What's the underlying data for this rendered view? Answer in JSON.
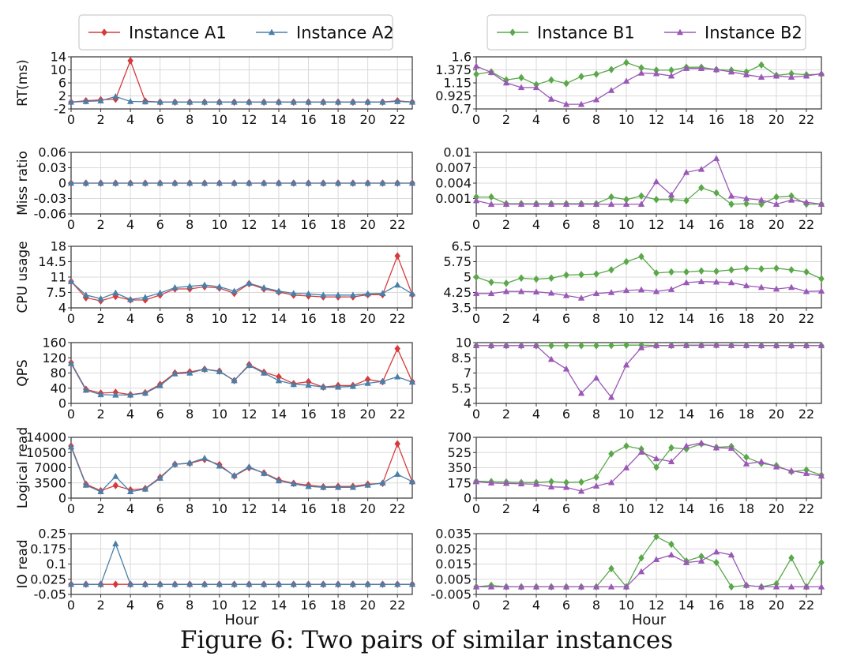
{
  "caption": "Figure 6: Two pairs of similar instances",
  "colors": {
    "A1": "#d63b3b",
    "A2": "#4a7fa8",
    "B1": "#5aa84a",
    "B2": "#9b59b6"
  },
  "legends": [
    {
      "entries": [
        {
          "name": "Instance A1",
          "color": "#d63b3b",
          "marker": "diamond"
        },
        {
          "name": "Instance A2",
          "color": "#4a7fa8",
          "marker": "triangle"
        }
      ]
    },
    {
      "entries": [
        {
          "name": "Instance B1",
          "color": "#5aa84a",
          "marker": "diamond"
        },
        {
          "name": "Instance B2",
          "color": "#9b59b6",
          "marker": "triangle"
        }
      ]
    }
  ],
  "chart_data": [
    {
      "type": "line",
      "ylabel": "RT(ms)",
      "ylim": [
        -2,
        14
      ],
      "yticks": [
        "-2",
        "2",
        "6",
        "10",
        "14"
      ],
      "xlim": [
        0,
        23
      ],
      "xticks": [
        0,
        2,
        4,
        6,
        8,
        10,
        12,
        14,
        16,
        18,
        20,
        22
      ],
      "grid": true,
      "series": [
        {
          "name": "Instance A1",
          "color": "#d63b3b",
          "marker": "diamond",
          "values": [
            0.1,
            0.5,
            0.8,
            1.0,
            12.8,
            0.4,
            0.1,
            0.1,
            0.1,
            0.1,
            0.1,
            0.1,
            0.1,
            0.1,
            0.1,
            0.1,
            0.1,
            0.1,
            0.1,
            0.1,
            0.1,
            0.1,
            0.5,
            0.1
          ]
        },
        {
          "name": "Instance A2",
          "color": "#4a7fa8",
          "marker": "triangle",
          "values": [
            0.1,
            0.3,
            0.5,
            1.8,
            0.3,
            0.2,
            0.1,
            0.1,
            0.1,
            0.1,
            0.1,
            0.1,
            0.1,
            0.1,
            0.1,
            0.1,
            0.1,
            0.1,
            0.1,
            0.1,
            0.1,
            0.1,
            0.3,
            0.1
          ]
        }
      ]
    },
    {
      "type": "line",
      "ylabel": "RT(ms)",
      "ylim": [
        0.7,
        1.6
      ],
      "yticks": [
        "0.7",
        "0.925",
        "1.15",
        "1.375",
        "1.6"
      ],
      "xlim": [
        0,
        23
      ],
      "xticks": [
        0,
        2,
        4,
        6,
        8,
        10,
        12,
        14,
        16,
        18,
        20,
        22
      ],
      "grid": true,
      "series": [
        {
          "name": "Instance B1",
          "color": "#5aa84a",
          "marker": "diamond",
          "values": [
            1.3,
            1.34,
            1.2,
            1.24,
            1.12,
            1.2,
            1.14,
            1.26,
            1.3,
            1.38,
            1.5,
            1.41,
            1.37,
            1.37,
            1.42,
            1.42,
            1.38,
            1.37,
            1.34,
            1.46,
            1.28,
            1.31,
            1.29,
            1.3
          ]
        },
        {
          "name": "Instance B2",
          "color": "#9b59b6",
          "marker": "triangle",
          "values": [
            1.44,
            1.33,
            1.15,
            1.07,
            1.07,
            0.87,
            0.78,
            0.78,
            0.86,
            1.02,
            1.18,
            1.32,
            1.31,
            1.27,
            1.4,
            1.4,
            1.38,
            1.34,
            1.29,
            1.25,
            1.27,
            1.25,
            1.27,
            1.31
          ]
        }
      ]
    },
    {
      "type": "line",
      "ylabel": "Miss ratio",
      "ylim": [
        -0.06,
        0.06
      ],
      "yticks": [
        "-0.06",
        "-0.03",
        "0",
        "0.03",
        "0.06"
      ],
      "xlim": [
        0,
        23
      ],
      "xticks": [
        0,
        2,
        4,
        6,
        8,
        10,
        12,
        14,
        16,
        18,
        20,
        22
      ],
      "grid": true,
      "series": [
        {
          "name": "Instance A1",
          "color": "#d63b3b",
          "marker": "diamond",
          "values": [
            0,
            0,
            0,
            0,
            0,
            0,
            0,
            0,
            0,
            0,
            0,
            0,
            0,
            0,
            0,
            0,
            0,
            0,
            0,
            0,
            0,
            0,
            0,
            0
          ]
        },
        {
          "name": "Instance A2",
          "color": "#4a7fa8",
          "marker": "triangle",
          "values": [
            0,
            0,
            0,
            0,
            0,
            0,
            0,
            0,
            0,
            0,
            0,
            0,
            0,
            0,
            0,
            0,
            0,
            0,
            0,
            0,
            0,
            0,
            0,
            0
          ]
        }
      ]
    },
    {
      "type": "line",
      "ylabel": "Miss ratio",
      "ylim": [
        -0.002,
        0.01
      ],
      "yticks": [
        "0.001",
        "0.004",
        "0.007",
        "0.01"
      ],
      "xlim": [
        0,
        23
      ],
      "xticks": [
        0,
        2,
        4,
        6,
        8,
        10,
        12,
        14,
        16,
        18,
        20,
        22
      ],
      "grid": true,
      "series": [
        {
          "name": "Instance B1",
          "color": "#5aa84a",
          "marker": "diamond",
          "values": [
            0.0013,
            0.0013,
            0.0,
            0.0,
            0.0,
            0.0,
            0.0,
            0.0,
            0.0,
            0.0013,
            0.0008,
            0.0015,
            0.0008,
            0.0008,
            0.0006,
            0.0031,
            0.0021,
            -0.0001,
            0.0,
            -0.0001,
            0.0013,
            0.0015,
            -0.0001,
            -0.0001
          ]
        },
        {
          "name": "Instance B2",
          "color": "#9b59b6",
          "marker": "triangle",
          "values": [
            0.0006,
            -0.0001,
            -0.0001,
            -0.0001,
            -0.0001,
            -0.0001,
            -0.0001,
            -0.0001,
            -0.0001,
            -0.0001,
            -0.0001,
            -0.0001,
            0.0043,
            0.0017,
            0.0061,
            0.0067,
            0.0088,
            0.0015,
            0.001,
            0.0007,
            -0.0001,
            0.0007,
            0.0003,
            -0.0001
          ]
        }
      ]
    },
    {
      "type": "line",
      "ylabel": "CPU usage",
      "ylim": [
        4,
        18
      ],
      "yticks": [
        "4",
        "7.5",
        "11",
        "14.5",
        "18"
      ],
      "xlim": [
        0,
        23
      ],
      "xticks": [
        0,
        2,
        4,
        6,
        8,
        10,
        12,
        14,
        16,
        18,
        20,
        22
      ],
      "grid": true,
      "series": [
        {
          "name": "Instance A1",
          "color": "#d63b3b",
          "marker": "diamond",
          "values": [
            10.0,
            6.3,
            5.6,
            6.6,
            5.8,
            5.8,
            6.9,
            8.3,
            8.3,
            8.8,
            8.5,
            7.3,
            9.5,
            8.3,
            7.6,
            6.9,
            6.7,
            6.5,
            6.5,
            6.5,
            7.0,
            7.0,
            15.8,
            7.0
          ]
        },
        {
          "name": "Instance A2",
          "color": "#4a7fa8",
          "marker": "triangle",
          "values": [
            10.0,
            6.9,
            6.1,
            7.4,
            5.9,
            6.4,
            7.4,
            8.6,
            8.9,
            9.2,
            8.8,
            7.8,
            9.6,
            8.6,
            7.8,
            7.3,
            7.2,
            6.9,
            6.9,
            6.9,
            7.2,
            7.3,
            9.2,
            7.2
          ]
        }
      ]
    },
    {
      "type": "line",
      "ylabel": "CPU usage",
      "ylim": [
        3.5,
        6.5
      ],
      "yticks": [
        "3.5",
        "4.25",
        "5",
        "5.75",
        "6.5"
      ],
      "xlim": [
        0,
        23
      ],
      "xticks": [
        0,
        2,
        4,
        6,
        8,
        10,
        12,
        14,
        16,
        18,
        20,
        22
      ],
      "grid": true,
      "series": [
        {
          "name": "Instance B1",
          "color": "#5aa84a",
          "marker": "diamond",
          "values": [
            5.0,
            4.75,
            4.7,
            4.95,
            4.9,
            4.95,
            5.1,
            5.12,
            5.15,
            5.35,
            5.75,
            6.0,
            5.2,
            5.25,
            5.25,
            5.3,
            5.28,
            5.35,
            5.42,
            5.4,
            5.43,
            5.35,
            5.25,
            4.92
          ]
        },
        {
          "name": "Instance B2",
          "color": "#9b59b6",
          "marker": "triangle",
          "values": [
            4.2,
            4.2,
            4.3,
            4.3,
            4.28,
            4.22,
            4.1,
            3.98,
            4.2,
            4.25,
            4.35,
            4.38,
            4.3,
            4.4,
            4.73,
            4.78,
            4.76,
            4.73,
            4.58,
            4.5,
            4.42,
            4.5,
            4.3,
            4.32
          ]
        }
      ]
    },
    {
      "type": "line",
      "ylabel": "QPS",
      "ylim": [
        0,
        160
      ],
      "yticks": [
        "0",
        "40",
        "80",
        "120",
        "160"
      ],
      "xlim": [
        0,
        23
      ],
      "xticks": [
        0,
        2,
        4,
        6,
        8,
        10,
        12,
        14,
        16,
        18,
        20,
        22
      ],
      "grid": true,
      "series": [
        {
          "name": "Instance A1",
          "color": "#d63b3b",
          "marker": "diamond",
          "values": [
            107,
            37,
            27,
            29,
            23,
            28,
            50,
            80,
            83,
            90,
            85,
            60,
            102,
            82,
            70,
            52,
            57,
            43,
            47,
            47,
            63,
            57,
            144,
            57
          ]
        },
        {
          "name": "Instance A2",
          "color": "#4a7fa8",
          "marker": "triangle",
          "values": [
            105,
            35,
            23,
            22,
            22,
            27,
            47,
            78,
            80,
            90,
            84,
            60,
            100,
            80,
            60,
            50,
            48,
            43,
            43,
            45,
            53,
            58,
            70,
            56
          ]
        }
      ]
    },
    {
      "type": "line",
      "ylabel": "QPS",
      "ylim": [
        4,
        10
      ],
      "yticks": [
        "4",
        "5.5",
        "7",
        "8.5",
        "10"
      ],
      "xlim": [
        0,
        23
      ],
      "xticks": [
        0,
        2,
        4,
        6,
        8,
        10,
        12,
        14,
        16,
        18,
        20,
        22
      ],
      "grid": true,
      "series": [
        {
          "name": "Instance B1",
          "color": "#5aa84a",
          "marker": "diamond",
          "values": [
            9.7,
            9.7,
            9.7,
            9.7,
            9.7,
            9.7,
            9.7,
            9.7,
            9.7,
            9.72,
            9.75,
            9.75,
            9.72,
            9.72,
            9.75,
            9.75,
            9.75,
            9.75,
            9.73,
            9.72,
            9.72,
            9.72,
            9.72,
            9.7
          ]
        },
        {
          "name": "Instance B2",
          "color": "#9b59b6",
          "marker": "triangle",
          "values": [
            9.7,
            9.7,
            9.7,
            9.7,
            9.7,
            8.35,
            7.4,
            5.0,
            6.5,
            4.6,
            7.8,
            9.5,
            9.7,
            9.7,
            9.72,
            9.72,
            9.74,
            9.72,
            9.72,
            9.7,
            9.7,
            9.7,
            9.7,
            9.7
          ]
        }
      ]
    },
    {
      "type": "line",
      "ylabel": "Logical read",
      "ylim": [
        0,
        14000
      ],
      "yticks": [
        "0",
        "3500",
        "7000",
        "10500",
        "14000"
      ],
      "xlim": [
        0,
        23
      ],
      "xticks": [
        0,
        2,
        4,
        6,
        8,
        10,
        12,
        14,
        16,
        18,
        20,
        22
      ],
      "grid": true,
      "series": [
        {
          "name": "Instance A1",
          "color": "#d63b3b",
          "marker": "diamond",
          "values": [
            12000,
            3200,
            1700,
            2900,
            1900,
            2200,
            4800,
            7800,
            8000,
            8900,
            7700,
            5100,
            7000,
            5800,
            4200,
            3400,
            3000,
            2600,
            2700,
            2700,
            3200,
            3400,
            12500,
            3700
          ]
        },
        {
          "name": "Instance A2",
          "color": "#4a7fa8",
          "marker": "triangle",
          "values": [
            11800,
            3000,
            1500,
            5000,
            1500,
            2100,
            4600,
            7800,
            8100,
            9200,
            7400,
            5200,
            7200,
            5700,
            4000,
            3300,
            2700,
            2500,
            2500,
            2500,
            3000,
            3500,
            5500,
            3800
          ]
        }
      ]
    },
    {
      "type": "line",
      "ylabel": "Logical read",
      "ylim": [
        0,
        700
      ],
      "yticks": [
        "0",
        "175",
        "350",
        "525",
        "700"
      ],
      "xlim": [
        0,
        23
      ],
      "xticks": [
        0,
        2,
        4,
        6,
        8,
        10,
        12,
        14,
        16,
        18,
        20,
        22
      ],
      "grid": true,
      "series": [
        {
          "name": "Instance B1",
          "color": "#5aa84a",
          "marker": "diamond",
          "values": [
            195,
            190,
            185,
            180,
            180,
            190,
            180,
            185,
            240,
            510,
            600,
            565,
            355,
            580,
            565,
            625,
            585,
            595,
            470,
            400,
            375,
            305,
            325,
            265
          ]
        },
        {
          "name": "Instance B2",
          "color": "#9b59b6",
          "marker": "triangle",
          "values": [
            190,
            175,
            170,
            165,
            160,
            130,
            125,
            80,
            140,
            180,
            350,
            530,
            455,
            420,
            600,
            635,
            580,
            575,
            395,
            420,
            360,
            315,
            285,
            255
          ]
        }
      ]
    },
    {
      "type": "line",
      "ylabel": "IO read",
      "xlabel": "Hour",
      "ylim": [
        -0.05,
        0.25
      ],
      "yticks": [
        "-0.05",
        "0.025",
        "0.1",
        "0.175",
        "0.25"
      ],
      "xlim": [
        0,
        23
      ],
      "xticks": [
        0,
        2,
        4,
        6,
        8,
        10,
        12,
        14,
        16,
        18,
        20,
        22
      ],
      "grid": true,
      "series": [
        {
          "name": "Instance A1",
          "color": "#d63b3b",
          "marker": "diamond",
          "values": [
            0,
            0,
            0,
            0,
            0,
            0,
            0,
            0,
            0,
            0,
            0,
            0,
            0,
            0,
            0,
            0,
            0,
            0,
            0,
            0,
            0,
            0,
            0,
            0
          ]
        },
        {
          "name": "Instance A2",
          "color": "#4a7fa8",
          "marker": "triangle",
          "values": [
            0,
            0,
            0,
            0.2,
            0,
            0,
            0,
            0,
            0,
            0,
            0,
            0,
            0,
            0,
            0,
            0,
            0,
            0,
            0,
            0,
            0,
            0,
            0,
            0
          ]
        }
      ]
    },
    {
      "type": "line",
      "ylabel": "IO read",
      "xlabel": "Hour",
      "ylim": [
        -0.005,
        0.035
      ],
      "yticks": [
        "-0.005",
        "0.005",
        "0.015",
        "0.025",
        "0.035"
      ],
      "xlim": [
        0,
        23
      ],
      "xticks": [
        0,
        2,
        4,
        6,
        8,
        10,
        12,
        14,
        16,
        18,
        20,
        22
      ],
      "grid": true,
      "series": [
        {
          "name": "Instance B1",
          "color": "#5aa84a",
          "marker": "diamond",
          "values": [
            0,
            0.001,
            0,
            0,
            0,
            0,
            0,
            0,
            0,
            0.012,
            0,
            0.019,
            0.033,
            0.028,
            0.017,
            0.02,
            0.016,
            0,
            0.001,
            0,
            0.002,
            0.019,
            0,
            0.016
          ]
        },
        {
          "name": "Instance B2",
          "color": "#9b59b6",
          "marker": "triangle",
          "values": [
            0,
            0,
            0,
            0,
            0,
            0,
            0,
            0,
            0,
            0,
            0,
            0.01,
            0.018,
            0.021,
            0.016,
            0.017,
            0.023,
            0.021,
            0.001,
            0,
            0,
            0,
            0,
            0
          ]
        }
      ]
    }
  ]
}
